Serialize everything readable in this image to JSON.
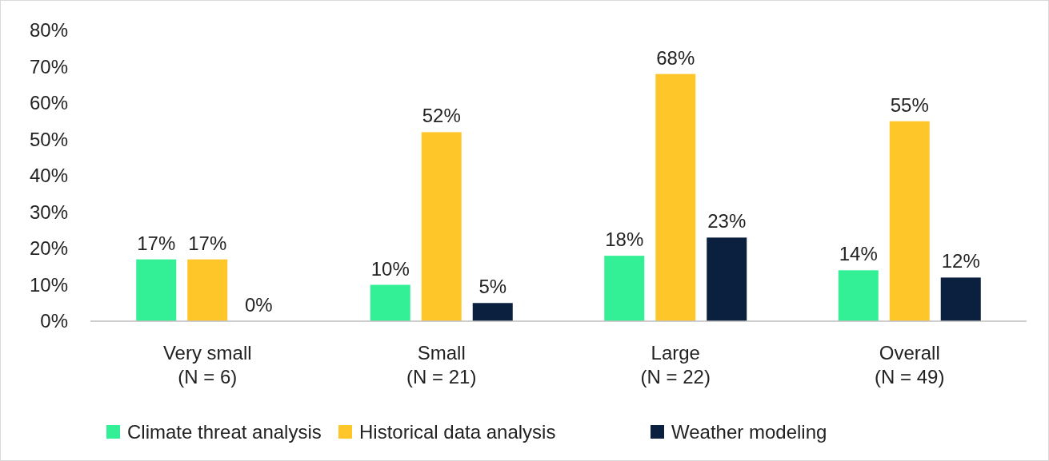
{
  "chart_data": {
    "type": "bar",
    "categories": [
      "Very small\n(N = 6)",
      "Small\n(N = 21)",
      "Large\n(N = 22)",
      "Overall\n(N = 49)"
    ],
    "series": [
      {
        "name": "Climate threat analysis",
        "color": "#33f096",
        "values": [
          17,
          10,
          18,
          14
        ]
      },
      {
        "name": "Historical data analysis",
        "color": "#ffc629",
        "values": [
          17,
          52,
          68,
          55
        ]
      },
      {
        "name": "Weather modeling",
        "color": "#0b1f3f",
        "values": [
          0,
          5,
          23,
          12
        ]
      }
    ],
    "ylim": [
      0,
      80
    ],
    "yticks": [
      {
        "value": 0,
        "label": "0%"
      },
      {
        "value": 10,
        "label": "10%"
      },
      {
        "value": 20,
        "label": "20%"
      },
      {
        "value": 30,
        "label": "30%"
      },
      {
        "value": 40,
        "label": "40%"
      },
      {
        "value": 50,
        "label": "50%"
      },
      {
        "value": 60,
        "label": "60%"
      },
      {
        "value": 70,
        "label": "70%"
      },
      {
        "value": 80,
        "label": "80%"
      }
    ],
    "value_labels": [
      [
        "17%",
        "10%",
        "18%",
        "14%"
      ],
      [
        "17%",
        "52%",
        "68%",
        "55%"
      ],
      [
        "0%",
        "5%",
        "23%",
        "12%"
      ]
    ],
    "grid": false,
    "legend": "bottom"
  }
}
